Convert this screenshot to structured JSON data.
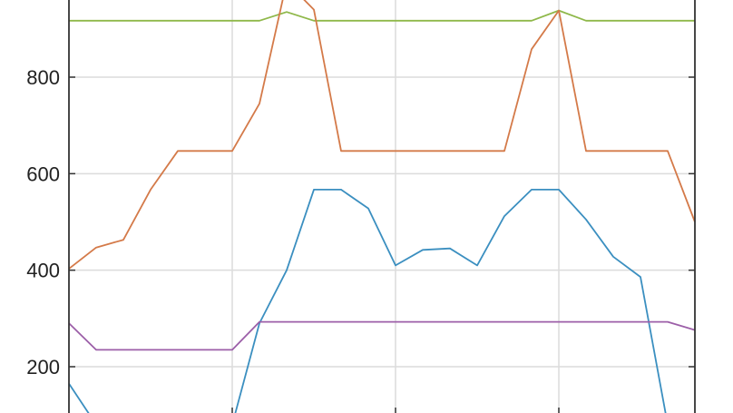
{
  "chart_data": {
    "type": "line",
    "title": "",
    "xlabel": "",
    "ylabel": "",
    "grid": true,
    "x": [
      0,
      1,
      2,
      3,
      4,
      5,
      6,
      7,
      8,
      9,
      10,
      11,
      12,
      13,
      14,
      15,
      16,
      17,
      18,
      19,
      20,
      21,
      22,
      23
    ],
    "xlim": [
      0,
      23
    ],
    "ylim": [
      100,
      1000
    ],
    "yticks": [
      {
        "value": 200,
        "label": "200"
      },
      {
        "value": 400,
        "label": "400"
      },
      {
        "value": 600,
        "label": "600"
      },
      {
        "value": 800,
        "label": "800"
      }
    ],
    "xgrid": [
      6,
      12,
      18
    ],
    "series": [
      {
        "color": "#8fb84a",
        "values": [
          917,
          917,
          917,
          917,
          917,
          917,
          917,
          917,
          935,
          917,
          917,
          917,
          917,
          917,
          917,
          917,
          917,
          917,
          938,
          917,
          917,
          917,
          917,
          917
        ]
      },
      {
        "color": "#d47a49",
        "values": [
          403,
          447,
          463,
          567,
          647,
          647,
          647,
          745,
          997,
          940,
          647,
          647,
          647,
          647,
          647,
          647,
          647,
          858,
          938,
          647,
          647,
          647,
          647,
          500
        ]
      },
      {
        "color": "#3b8fc0",
        "values": [
          165,
          80,
          80,
          80,
          80,
          80,
          80,
          290,
          400,
          567,
          567,
          528,
          410,
          442,
          445,
          410,
          512,
          567,
          567,
          505,
          428,
          386,
          80,
          95
        ]
      },
      {
        "color": "#9c5fa8",
        "values": [
          290,
          235,
          235,
          235,
          235,
          235,
          235,
          293,
          293,
          293,
          293,
          293,
          293,
          293,
          293,
          293,
          293,
          293,
          293,
          293,
          293,
          293,
          293,
          276
        ]
      }
    ]
  }
}
